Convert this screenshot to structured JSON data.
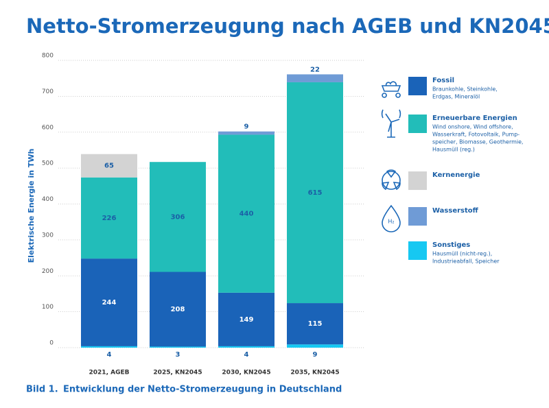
{
  "chart_data": {
    "type": "stacked_bar",
    "title": "Netto-Stromerzeugung nach AGEB und KN2045",
    "y_axis_label": "Elektrische Energie in TWh",
    "figure_number": "Bild 1.",
    "caption": "Entwicklung der Netto-Stromerzeugung in Deutschland",
    "categories": [
      "2021, AGEB",
      "2025, KN2045",
      "2030, KN2045",
      "2035, KN2045"
    ],
    "series": [
      {
        "name": "Fossil",
        "color": "#1a63b8",
        "description": [
          "Braunkohle, Steinkohle,",
          "Erdgas, Mineralöl"
        ],
        "values": [
          244,
          208,
          149,
          115
        ]
      },
      {
        "name": "Erneuerbare Energien",
        "color": "#22bdb9",
        "description": [
          "Wind onshore, Wind offshore,",
          "Wasserkraft, Fotovoltaik, Pump-",
          "speicher, Biomasse, Geothermie,",
          "Hausmüll (reg.)"
        ],
        "values": [
          226,
          306,
          440,
          615
        ]
      },
      {
        "name": "Kernenergie",
        "color": "#d3d3d3",
        "values": [
          65,
          null,
          null,
          null
        ]
      },
      {
        "name": "Wasserstoff",
        "color": "#6f9bd6",
        "icon_text": "H₂",
        "values": [
          null,
          null,
          9,
          22
        ]
      },
      {
        "name": "Sonstiges",
        "color": "#16c8f2",
        "description": [
          "Hausmüll (nicht-reg.),",
          "Industrieabfall, Speicher"
        ],
        "values": [
          4,
          3,
          4,
          9
        ]
      }
    ],
    "ylim": [
      0,
      800
    ],
    "yticks": [
      0,
      100,
      200,
      300,
      400,
      500,
      600,
      700,
      800
    ],
    "grid": true
  }
}
